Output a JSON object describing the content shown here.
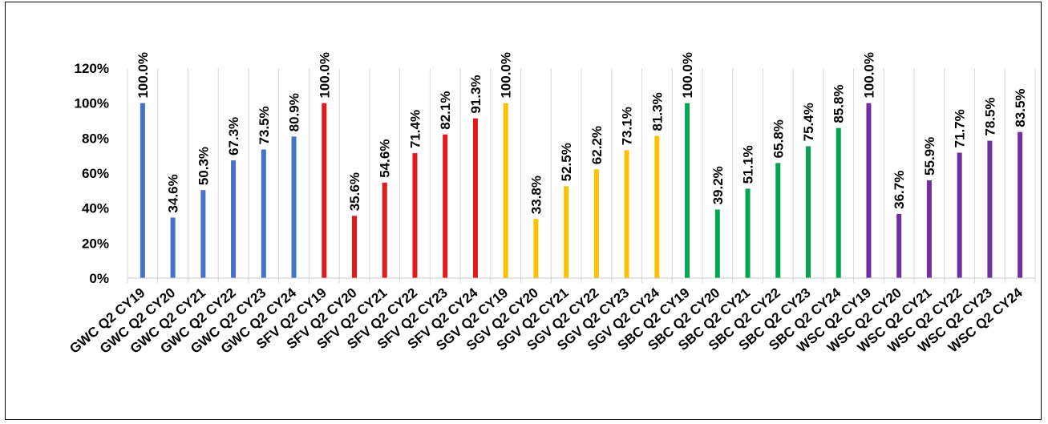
{
  "chart_data": {
    "type": "bar",
    "title": "",
    "xlabel": "",
    "ylabel": "",
    "ylim": [
      0,
      1.2
    ],
    "yticks": [
      "0%",
      "20%",
      "40%",
      "60%",
      "80%",
      "100%",
      "120%"
    ],
    "grid": "vertical",
    "legend": "none",
    "categories": [
      "GWC Q2 CY19",
      "GWC Q2 CY20",
      "GWC Q2 CY21",
      "GWC Q2 CY22",
      "GWC Q2 CY23",
      "GWC Q2 CY24",
      "SFV Q2 CY19",
      "SFV Q2 CY20",
      "SFV Q2 CY21",
      "SFV Q2 CY22",
      "SFV Q2 CY23",
      "SFV Q2 CY24",
      "SGV Q2 CY19",
      "SGV Q2 CY20",
      "SGV Q2 CY21",
      "SGV Q2 CY22",
      "SGV Q2 CY23",
      "SGV Q2 CY24",
      "SBC Q2 CY19",
      "SBC Q2 CY20",
      "SBC Q2 CY21",
      "SBC Q2 CY22",
      "SBC Q2 CY23",
      "SBC Q2 CY24",
      "WSC Q2 CY19",
      "WSC Q2 CY20",
      "WSC Q2 CY21",
      "WSC Q2 CY22",
      "WSC Q2 CY23",
      "WSC Q2 CY24"
    ],
    "values": [
      1.0,
      0.346,
      0.503,
      0.673,
      0.735,
      0.809,
      1.0,
      0.356,
      0.546,
      0.714,
      0.821,
      0.913,
      1.0,
      0.338,
      0.525,
      0.622,
      0.731,
      0.813,
      1.0,
      0.392,
      0.511,
      0.658,
      0.754,
      0.858,
      1.0,
      0.367,
      0.559,
      0.717,
      0.785,
      0.835
    ],
    "labels": [
      "100.0%",
      "34.6%",
      "50.3%",
      "67.3%",
      "73.5%",
      "80.9%",
      "100.0%",
      "35.6%",
      "54.6%",
      "71.4%",
      "82.1%",
      "91.3%",
      "100.0%",
      "33.8%",
      "52.5%",
      "62.2%",
      "73.1%",
      "81.3%",
      "100.0%",
      "39.2%",
      "51.1%",
      "65.8%",
      "75.4%",
      "85.8%",
      "100.0%",
      "36.7%",
      "55.9%",
      "71.7%",
      "78.5%",
      "83.5%"
    ],
    "colors": [
      "#4472C4",
      "#4472C4",
      "#4472C4",
      "#4472C4",
      "#4472C4",
      "#4472C4",
      "#E31A1C",
      "#E31A1C",
      "#E31A1C",
      "#E31A1C",
      "#E31A1C",
      "#E31A1C",
      "#FFC000",
      "#FFC000",
      "#FFC000",
      "#FFC000",
      "#FFC000",
      "#FFC000",
      "#00A651",
      "#00A651",
      "#00A651",
      "#00A651",
      "#00A651",
      "#00A651",
      "#7030A0",
      "#7030A0",
      "#7030A0",
      "#7030A0",
      "#7030A0",
      "#7030A0"
    ]
  }
}
